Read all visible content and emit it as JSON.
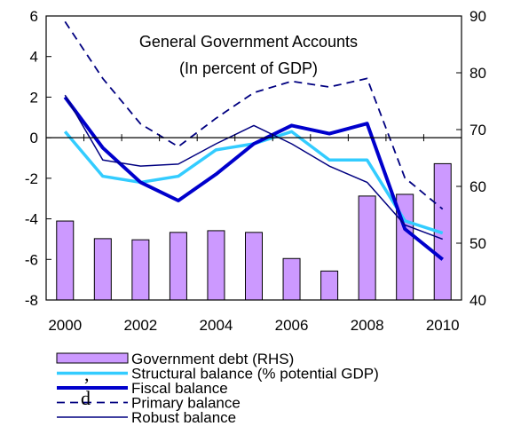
{
  "chart_data": {
    "type": "bar+line",
    "title": "General Government Accounts",
    "subtitle": "(In percent of GDP)",
    "categories": [
      2000,
      2001,
      2002,
      2003,
      2004,
      2005,
      2006,
      2007,
      2008,
      2009,
      2010
    ],
    "x_tick_labels": [
      "2000",
      "2002",
      "2004",
      "2006",
      "2008",
      "2010"
    ],
    "ylim_left": [
      -8,
      6
    ],
    "yticks_left": [
      "6",
      "4",
      "2",
      "0",
      "-2",
      "-4",
      "-6",
      "-8"
    ],
    "ylim_right": [
      40,
      90
    ],
    "yticks_right": [
      "90",
      "80",
      "70",
      "60",
      "50",
      "40"
    ],
    "bars": {
      "name": "Government debt (RHS)",
      "axis": "right",
      "color": "#cc99ff",
      "values": [
        53.9,
        50.8,
        50.6,
        51.9,
        52.2,
        51.9,
        47.3,
        45.1,
        58.3,
        58.6,
        64.0
      ]
    },
    "series": [
      {
        "name": "Structural balance (% potential GDP)",
        "style": "solid",
        "color": "#33ccff",
        "width": 3.5,
        "values": [
          0.3,
          -1.9,
          -2.2,
          -1.9,
          -0.6,
          -0.3,
          0.3,
          -1.1,
          -1.1,
          -4.1,
          -4.7
        ]
      },
      {
        "name": "Fiscal balance",
        "style": "solid",
        "color": "#0000cc",
        "width": 4,
        "values": [
          2.0,
          -0.5,
          -2.2,
          -3.1,
          -1.8,
          -0.3,
          0.6,
          0.2,
          0.7,
          -4.5,
          -6.0
        ]
      },
      {
        "name": "Primary balance",
        "style": "dashed",
        "color": "#000080",
        "width": 1.8,
        "values": [
          89.0,
          79.0,
          71.0,
          67.0,
          72.0,
          76.5,
          78.5,
          77.5,
          79.0,
          61.5,
          56.0
        ],
        "axis": "right"
      },
      {
        "name": "Robust balance",
        "style": "solid",
        "color": "#000080",
        "width": 1.5,
        "values": [
          2.1,
          -1.1,
          -1.4,
          -1.3,
          -0.3,
          0.6,
          -0.3,
          -1.4,
          -2.2,
          -4.3,
          -5.0
        ]
      }
    ],
    "grid": false,
    "legend_position": "bottom"
  },
  "stray_text": [
    ",",
    "d"
  ]
}
